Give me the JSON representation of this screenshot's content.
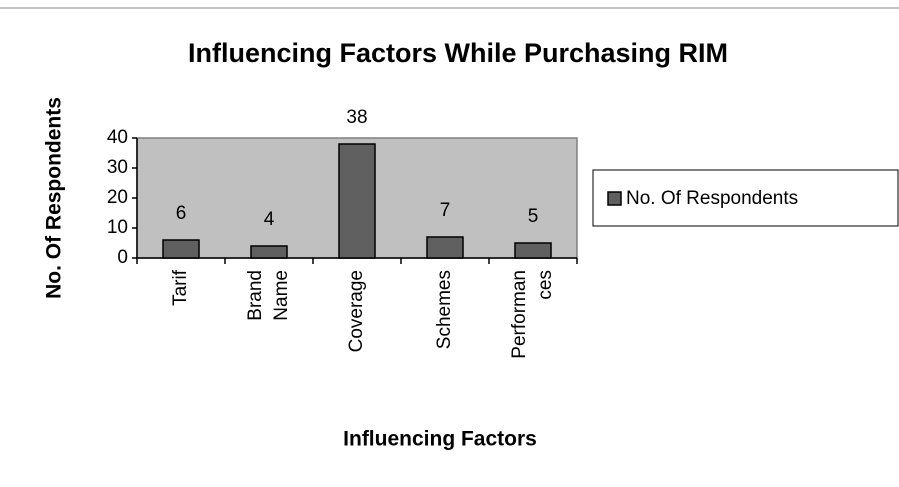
{
  "chart_data": {
    "type": "bar",
    "title": "Influencing Factors While Purchasing RIM",
    "x_label": "Influencing Factors",
    "y_label": "No. Of Respondents",
    "categories": [
      "Tarif",
      "Brand Name",
      "Coverage",
      "Schemes",
      "Performances"
    ],
    "series": [
      {
        "name": "No. Of Respondents",
        "color": "#606060",
        "values": [
          6,
          4,
          38,
          7,
          5
        ]
      }
    ],
    "ylim": [
      0,
      40
    ],
    "yticks": [
      0,
      10,
      20,
      30,
      40
    ],
    "plot_background": "#c0c0c0",
    "legend": "right"
  }
}
